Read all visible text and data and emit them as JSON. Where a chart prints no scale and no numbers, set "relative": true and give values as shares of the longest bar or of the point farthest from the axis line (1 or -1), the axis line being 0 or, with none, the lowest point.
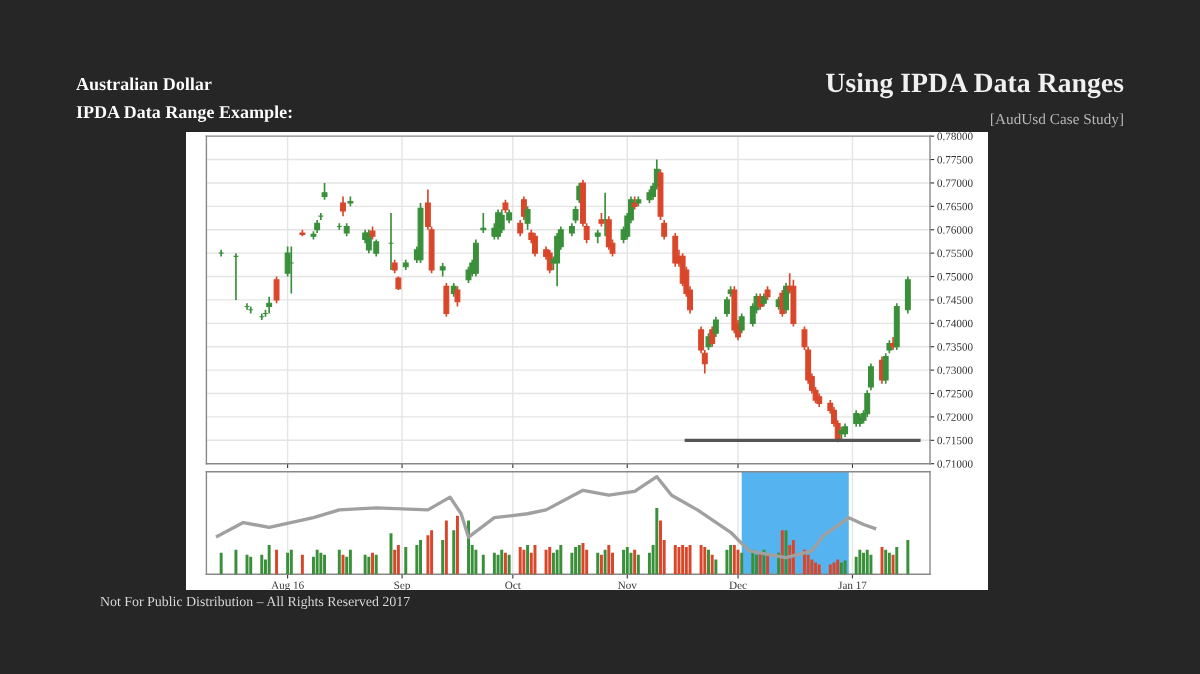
{
  "chart_data": [
    {
      "type": "candlestick",
      "title": "Australian Dollar",
      "subtitle": "IPDA Data Range Example:",
      "annotations": [
        "Using IPDA Data Ranges",
        "[AudUsd Case Study]",
        "Not For Public Distribution – All Rights Reserved 2017"
      ],
      "x": [
        "2016-07-14",
        "2016-07-18",
        "2016-07-21",
        "2016-07-22",
        "2016-07-25",
        "2016-07-26",
        "2016-07-27",
        "2016-07-29",
        "2016-08-01",
        "2016-08-02",
        "2016-08-05",
        "2016-08-08",
        "2016-08-09",
        "2016-08-10",
        "2016-08-11",
        "2016-08-15",
        "2016-08-16",
        "2016-08-17",
        "2016-08-18",
        "2016-08-22",
        "2016-08-23",
        "2016-08-24",
        "2016-08-25",
        "2016-08-29",
        "2016-08-30",
        "2016-08-31",
        "2016-09-02",
        "2016-09-05",
        "2016-09-06",
        "2016-09-08",
        "2016-09-09",
        "2016-09-12",
        "2016-09-13",
        "2016-09-15",
        "2016-09-16",
        "2016-09-19",
        "2016-09-20",
        "2016-09-21",
        "2016-09-23",
        "2016-09-26",
        "2016-09-27",
        "2016-09-28",
        "2016-09-29",
        "2016-09-30",
        "2016-10-03",
        "2016-10-04",
        "2016-10-05",
        "2016-10-06",
        "2016-10-07",
        "2016-10-10",
        "2016-10-11",
        "2016-10-12",
        "2016-10-13",
        "2016-10-14",
        "2016-10-17",
        "2016-10-18",
        "2016-10-19",
        "2016-10-20",
        "2016-10-21",
        "2016-10-24",
        "2016-10-25",
        "2016-10-26",
        "2016-10-27",
        "2016-10-28",
        "2016-10-31",
        "2016-11-01",
        "2016-11-02",
        "2016-11-03",
        "2016-11-04",
        "2016-11-07",
        "2016-11-08",
        "2016-11-09",
        "2016-11-10",
        "2016-11-11",
        "2016-11-14",
        "2016-11-15",
        "2016-11-16",
        "2016-11-17",
        "2016-11-18",
        "2016-11-21",
        "2016-11-22",
        "2016-11-23",
        "2016-11-24",
        "2016-11-25",
        "2016-11-28",
        "2016-11-29",
        "2016-11-30",
        "2016-12-01",
        "2016-12-02",
        "2016-12-05",
        "2016-12-06",
        "2016-12-07",
        "2016-12-08",
        "2016-12-09",
        "2016-12-12",
        "2016-12-13",
        "2016-12-14",
        "2016-12-15",
        "2016-12-16",
        "2016-12-19",
        "2016-12-20",
        "2016-12-21",
        "2016-12-22",
        "2016-12-23",
        "2016-12-26",
        "2016-12-27",
        "2016-12-28",
        "2016-12-29",
        "2016-12-30",
        "2017-01-02",
        "2017-01-03",
        "2017-01-04",
        "2017-01-05",
        "2017-01-06",
        "2017-01-09",
        "2017-01-10",
        "2017-01-11",
        "2017-01-12",
        "2017-01-13",
        "2017-01-16"
      ],
      "ohlc": [
        [
          0.755,
          0.7557,
          0.7543,
          0.755
        ],
        [
          0.7543,
          0.755,
          0.745,
          0.7543
        ],
        [
          0.7436,
          0.7443,
          0.7429,
          0.7436
        ],
        [
          0.7429,
          0.7436,
          0.7421,
          0.7429
        ],
        [
          0.7414,
          0.7421,
          0.7407,
          0.7414
        ],
        [
          0.7421,
          0.7429,
          0.7414,
          0.7421
        ],
        [
          0.7436,
          0.7457,
          0.7421,
          0.7443
        ],
        [
          0.7493,
          0.75,
          0.7443,
          0.745
        ],
        [
          0.7507,
          0.7564,
          0.75,
          0.755
        ],
        [
          0.7529,
          0.7564,
          0.7464,
          0.7529
        ],
        [
          0.7593,
          0.76,
          0.7586,
          0.759
        ],
        [
          0.7586,
          0.7597,
          0.7579,
          0.759
        ],
        [
          0.76,
          0.7621,
          0.7593,
          0.7614
        ],
        [
          0.7629,
          0.7636,
          0.7621,
          0.7629
        ],
        [
          0.7671,
          0.77,
          0.7664,
          0.7679
        ],
        [
          0.7607,
          0.7614,
          0.76,
          0.7607
        ],
        [
          0.7657,
          0.7671,
          0.7629,
          0.764
        ],
        [
          0.7593,
          0.7614,
          0.7586,
          0.7607
        ],
        [
          0.7657,
          0.7671,
          0.765,
          0.766
        ],
        [
          0.7579,
          0.76,
          0.7571,
          0.7593
        ],
        [
          0.7557,
          0.76,
          0.755,
          0.7593
        ],
        [
          0.7597,
          0.7607,
          0.7579,
          0.7586
        ],
        [
          0.755,
          0.7579,
          0.7543,
          0.7574
        ],
        [
          0.7571,
          0.7636,
          0.7514,
          0.7571
        ],
        [
          0.7529,
          0.7536,
          0.7507,
          0.7514
        ],
        [
          0.7497,
          0.75,
          0.7471,
          0.7474
        ],
        [
          0.7521,
          0.7536,
          0.7514,
          0.7529
        ],
        [
          0.7536,
          0.7564,
          0.7529,
          0.7557
        ],
        [
          0.7536,
          0.7657,
          0.7529,
          0.7646
        ],
        [
          0.7657,
          0.7686,
          0.76,
          0.7607
        ],
        [
          0.76,
          0.7607,
          0.7507,
          0.7514
        ],
        [
          0.7514,
          0.7529,
          0.75,
          0.7521
        ],
        [
          0.7479,
          0.7486,
          0.7414,
          0.7421
        ],
        [
          0.7464,
          0.7486,
          0.7457,
          0.7479
        ],
        [
          0.7471,
          0.7479,
          0.7436,
          0.7446
        ],
        [
          0.7493,
          0.7521,
          0.7486,
          0.7514
        ],
        [
          0.7507,
          0.7536,
          0.75,
          0.7529
        ],
        [
          0.7507,
          0.7579,
          0.75,
          0.7571
        ],
        [
          0.76,
          0.7636,
          0.7593,
          0.7603
        ],
        [
          0.7586,
          0.7614,
          0.7579,
          0.7603
        ],
        [
          0.7586,
          0.7643,
          0.7579,
          0.7636
        ],
        [
          0.76,
          0.7643,
          0.7593,
          0.7631
        ],
        [
          0.7657,
          0.7664,
          0.7636,
          0.7643
        ],
        [
          0.7621,
          0.7643,
          0.7614,
          0.7636
        ],
        [
          0.7614,
          0.7621,
          0.7586,
          0.7593
        ],
        [
          0.7664,
          0.7671,
          0.7621,
          0.7629
        ],
        [
          0.7614,
          0.765,
          0.76,
          0.7643
        ],
        [
          0.7593,
          0.76,
          0.7571,
          0.7579
        ],
        [
          0.7586,
          0.7593,
          0.7543,
          0.755
        ],
        [
          0.7557,
          0.7564,
          0.7536,
          0.7543
        ],
        [
          0.755,
          0.7557,
          0.7507,
          0.7514
        ],
        [
          0.7529,
          0.7543,
          0.7514,
          0.7536
        ],
        [
          0.7529,
          0.7593,
          0.7479,
          0.7586
        ],
        [
          0.7564,
          0.7607,
          0.7557,
          0.76
        ],
        [
          0.7593,
          0.7614,
          0.7586,
          0.7607
        ],
        [
          0.7621,
          0.765,
          0.7614,
          0.7643
        ],
        [
          0.7664,
          0.77,
          0.7657,
          0.7693
        ],
        [
          0.77,
          0.7707,
          0.7607,
          0.7614
        ],
        [
          0.7607,
          0.7614,
          0.7571,
          0.7579
        ],
        [
          0.7586,
          0.76,
          0.7571,
          0.7593
        ],
        [
          0.7621,
          0.7636,
          0.7607,
          0.7614
        ],
        [
          0.7621,
          0.7679,
          0.7586,
          0.7621
        ],
        [
          0.7621,
          0.7629,
          0.7557,
          0.7564
        ],
        [
          0.7571,
          0.7579,
          0.7543,
          0.755
        ],
        [
          0.7579,
          0.7607,
          0.7571,
          0.76
        ],
        [
          0.7586,
          0.7636,
          0.7579,
          0.7629
        ],
        [
          0.7621,
          0.7671,
          0.7614,
          0.7664
        ],
        [
          0.7657,
          0.7671,
          0.7643,
          0.765
        ],
        [
          0.7657,
          0.7671,
          0.765,
          0.7664
        ],
        [
          0.7664,
          0.7686,
          0.7657,
          0.7679
        ],
        [
          0.7671,
          0.77,
          0.7664,
          0.7693
        ],
        [
          0.7693,
          0.775,
          0.7686,
          0.7729
        ],
        [
          0.7721,
          0.7729,
          0.7621,
          0.7629
        ],
        [
          0.7614,
          0.7621,
          0.7579,
          0.7586
        ],
        [
          0.7586,
          0.7593,
          0.7521,
          0.7529
        ],
        [
          0.7543,
          0.7557,
          0.7521,
          0.7529
        ],
        [
          0.7543,
          0.755,
          0.7479,
          0.7486
        ],
        [
          0.7514,
          0.7521,
          0.7457,
          0.7464
        ],
        [
          0.7471,
          0.7479,
          0.7421,
          0.7429
        ],
        [
          0.7386,
          0.7393,
          0.7336,
          0.7343
        ],
        [
          0.7336,
          0.7343,
          0.7293,
          0.7314
        ],
        [
          0.735,
          0.7379,
          0.7343,
          0.7371
        ],
        [
          0.7386,
          0.7393,
          0.735,
          0.7357
        ],
        [
          0.7379,
          0.7414,
          0.7371,
          0.7407
        ],
        [
          0.7421,
          0.7457,
          0.7414,
          0.745
        ],
        [
          0.7464,
          0.7479,
          0.7457,
          0.7471
        ],
        [
          0.7471,
          0.7479,
          0.7379,
          0.7386
        ],
        [
          0.74,
          0.7407,
          0.7364,
          0.7371
        ],
        [
          0.7386,
          0.7421,
          0.7379,
          0.7414
        ],
        [
          0.74,
          0.7443,
          0.7393,
          0.7436
        ],
        [
          0.7429,
          0.7464,
          0.7421,
          0.7457
        ],
        [
          0.7457,
          0.7464,
          0.7429,
          0.7436
        ],
        [
          0.7443,
          0.7464,
          0.7436,
          0.7457
        ],
        [
          0.7471,
          0.7479,
          0.745,
          0.7457
        ],
        [
          0.7436,
          0.7457,
          0.7429,
          0.745
        ],
        [
          0.7464,
          0.7471,
          0.7414,
          0.7421
        ],
        [
          0.7429,
          0.7486,
          0.7421,
          0.7479
        ],
        [
          0.7479,
          0.7507,
          0.7464,
          0.7471
        ],
        [
          0.7479,
          0.7493,
          0.7393,
          0.74
        ],
        [
          0.7386,
          0.7393,
          0.7343,
          0.735
        ],
        [
          0.7343,
          0.735,
          0.7271,
          0.7279
        ],
        [
          0.7286,
          0.7293,
          0.725,
          0.7257
        ],
        [
          0.7257,
          0.7264,
          0.7229,
          0.7236
        ],
        [
          0.7243,
          0.725,
          0.7221,
          0.7229
        ],
        [
          0.7229,
          0.7236,
          0.7207,
          0.7214
        ],
        [
          0.7214,
          0.7221,
          0.7179,
          0.7186
        ],
        [
          0.7186,
          0.7193,
          0.7146,
          0.715
        ],
        [
          0.7164,
          0.7179,
          0.715,
          0.7171
        ],
        [
          0.7164,
          0.7186,
          0.7157,
          0.7179
        ],
        [
          0.7186,
          0.7214,
          0.7179,
          0.7207
        ],
        [
          0.7186,
          0.7207,
          0.7179,
          0.72
        ],
        [
          0.7193,
          0.7214,
          0.7186,
          0.7207
        ],
        [
          0.7207,
          0.7257,
          0.72,
          0.725
        ],
        [
          0.7264,
          0.7314,
          0.7257,
          0.7307
        ],
        [
          0.7321,
          0.7329,
          0.7271,
          0.7279
        ],
        [
          0.7279,
          0.7336,
          0.7271,
          0.7329
        ],
        [
          0.7343,
          0.7364,
          0.7336,
          0.7357
        ],
        [
          0.7357,
          0.7371,
          0.7343,
          0.735
        ],
        [
          0.735,
          0.7443,
          0.7343,
          0.7436
        ],
        [
          0.7429,
          0.75,
          0.7421,
          0.7493
        ]
      ],
      "colors": [
        "#3a8f3a",
        "#3a8f3a",
        "#3a8f3a",
        "#3a8f3a",
        "#3a8f3a",
        "#3a8f3a",
        "#3a8f3a",
        "#d9472b",
        "#3a8f3a",
        "#3a8f3a",
        "#d9472b",
        "#3a8f3a",
        "#3a8f3a",
        "#3a8f3a",
        "#3a8f3a",
        "#3a8f3a",
        "#d9472b",
        "#3a8f3a",
        "#3a8f3a",
        "#3a8f3a",
        "#3a8f3a",
        "#d9472b",
        "#3a8f3a",
        "#3a8f3a",
        "#d9472b",
        "#d9472b",
        "#3a8f3a",
        "#3a8f3a",
        "#3a8f3a",
        "#d9472b",
        "#d9472b",
        "#3a8f3a",
        "#d9472b",
        "#3a8f3a",
        "#d9472b",
        "#3a8f3a",
        "#3a8f3a",
        "#3a8f3a",
        "#3a8f3a",
        "#3a8f3a",
        "#3a8f3a",
        "#3a8f3a",
        "#d9472b",
        "#3a8f3a",
        "#d9472b",
        "#d9472b",
        "#3a8f3a",
        "#d9472b",
        "#d9472b",
        "#d9472b",
        "#d9472b",
        "#3a8f3a",
        "#3a8f3a",
        "#3a8f3a",
        "#3a8f3a",
        "#3a8f3a",
        "#3a8f3a",
        "#d9472b",
        "#d9472b",
        "#3a8f3a",
        "#d9472b",
        "#3a8f3a",
        "#d9472b",
        "#d9472b",
        "#3a8f3a",
        "#3a8f3a",
        "#3a8f3a",
        "#d9472b",
        "#3a8f3a",
        "#3a8f3a",
        "#3a8f3a",
        "#3a8f3a",
        "#d9472b",
        "#d9472b",
        "#d9472b",
        "#d9472b",
        "#d9472b",
        "#d9472b",
        "#d9472b",
        "#d9472b",
        "#d9472b",
        "#3a8f3a",
        "#d9472b",
        "#3a8f3a",
        "#3a8f3a",
        "#3a8f3a",
        "#d9472b",
        "#d9472b",
        "#3a8f3a",
        "#3a8f3a",
        "#3a8f3a",
        "#d9472b",
        "#3a8f3a",
        "#d9472b",
        "#3a8f3a",
        "#d9472b",
        "#3a8f3a",
        "#d9472b",
        "#d9472b",
        "#d9472b",
        "#d9472b",
        "#d9472b",
        "#d9472b",
        "#d9472b",
        "#d9472b",
        "#d9472b",
        "#d9472b",
        "#3a8f3a",
        "#3a8f3a",
        "#3a8f3a",
        "#3a8f3a",
        "#3a8f3a",
        "#3a8f3a",
        "#3a8f3a",
        "#d9472b",
        "#3a8f3a",
        "#3a8f3a",
        "#d9472b",
        "#3a8f3a",
        "#3a8f3a"
      ],
      "series": [
        {
          "type": "line",
          "x": [
            "2016-11-17",
            "2017-01-19"
          ],
          "values": [
            0.715,
            0.715
          ],
          "color": "#555555"
        }
      ],
      "xlim": [
        "2016-07-10",
        "2017-01-22"
      ],
      "xticks": [
        {
          "value": "2016-08-01",
          "label": null
        },
        {
          "value": "2016-09-01",
          "label": null
        },
        {
          "value": "2016-10-01",
          "label": null
        },
        {
          "value": "2016-11-01",
          "label": null
        },
        {
          "value": "2016-12-01",
          "label": null
        },
        {
          "value": "2017-01-01",
          "label": null
        }
      ],
      "ylim": [
        0.71,
        0.78
      ],
      "yticks": [
        {
          "value": 0.71,
          "label": "0.71000"
        },
        {
          "value": 0.715,
          "label": "0.71500"
        },
        {
          "value": 0.72,
          "label": "0.72000"
        },
        {
          "value": 0.725,
          "label": "0.72500"
        },
        {
          "value": 0.73,
          "label": "0.73000"
        },
        {
          "value": 0.735,
          "label": "0.73500"
        },
        {
          "value": 0.74,
          "label": "0.74000"
        },
        {
          "value": 0.745,
          "label": "0.74500"
        },
        {
          "value": 0.75,
          "label": "0.75000"
        },
        {
          "value": 0.755,
          "label": "0.75500"
        },
        {
          "value": 0.76,
          "label": "0.76000"
        },
        {
          "value": 0.765,
          "label": "0.76500"
        },
        {
          "value": 0.77,
          "label": "0.77000"
        },
        {
          "value": 0.775,
          "label": "0.77500"
        },
        {
          "value": 0.78,
          "label": "0.78000"
        }
      ],
      "tick_labels": "y",
      "grid": true
    },
    {
      "type": "bar",
      "relative": true,
      "x": [
        "2016-07-14",
        "2016-07-18",
        "2016-07-21",
        "2016-07-22",
        "2016-07-25",
        "2016-07-26",
        "2016-07-27",
        "2016-07-29",
        "2016-08-01",
        "2016-08-02",
        "2016-08-05",
        "2016-08-08",
        "2016-08-09",
        "2016-08-10",
        "2016-08-11",
        "2016-08-15",
        "2016-08-16",
        "2016-08-17",
        "2016-08-18",
        "2016-08-22",
        "2016-08-23",
        "2016-08-24",
        "2016-08-25",
        "2016-08-29",
        "2016-08-30",
        "2016-08-31",
        "2016-09-02",
        "2016-09-05",
        "2016-09-06",
        "2016-09-08",
        "2016-09-09",
        "2016-09-12",
        "2016-09-13",
        "2016-09-15",
        "2016-09-16",
        "2016-09-19",
        "2016-09-20",
        "2016-09-21",
        "2016-09-23",
        "2016-09-26",
        "2016-09-27",
        "2016-09-28",
        "2016-09-29",
        "2016-09-30",
        "2016-10-03",
        "2016-10-04",
        "2016-10-05",
        "2016-10-06",
        "2016-10-07",
        "2016-10-10",
        "2016-10-11",
        "2016-10-12",
        "2016-10-13",
        "2016-10-14",
        "2016-10-17",
        "2016-10-18",
        "2016-10-19",
        "2016-10-20",
        "2016-10-21",
        "2016-10-24",
        "2016-10-25",
        "2016-10-26",
        "2016-10-27",
        "2016-10-28",
        "2016-10-31",
        "2016-11-01",
        "2016-11-02",
        "2016-11-03",
        "2016-11-04",
        "2016-11-07",
        "2016-11-08",
        "2016-11-09",
        "2016-11-10",
        "2016-11-11",
        "2016-11-14",
        "2016-11-15",
        "2016-11-16",
        "2016-11-17",
        "2016-11-18",
        "2016-11-21",
        "2016-11-22",
        "2016-11-23",
        "2016-11-24",
        "2016-11-25",
        "2016-11-28",
        "2016-11-29",
        "2016-11-30",
        "2016-12-01",
        "2016-12-02",
        "2016-12-05",
        "2016-12-06",
        "2016-12-07",
        "2016-12-08",
        "2016-12-09",
        "2016-12-12",
        "2016-12-13",
        "2016-12-14",
        "2016-12-15",
        "2016-12-16",
        "2016-12-19",
        "2016-12-20",
        "2016-12-21",
        "2016-12-22",
        "2016-12-23",
        "2016-12-26",
        "2016-12-27",
        "2016-12-28",
        "2016-12-29",
        "2016-12-30",
        "2017-01-02",
        "2017-01-03",
        "2017-01-04",
        "2017-01-05",
        "2017-01-06",
        "2017-01-09",
        "2017-01-10",
        "2017-01-11",
        "2017-01-12",
        "2017-01-13",
        "2017-01-16"
      ],
      "values": [
        0.22,
        0.25,
        0.2,
        0.18,
        0.2,
        0.15,
        0.3,
        0.25,
        0.22,
        0.25,
        0.2,
        0.18,
        0.25,
        0.22,
        0.2,
        0.25,
        0.2,
        0.18,
        0.25,
        0.2,
        0.18,
        0.22,
        0.2,
        0.42,
        0.25,
        0.3,
        0.28,
        0.3,
        0.35,
        0.4,
        0.45,
        0.35,
        0.55,
        0.45,
        0.6,
        0.55,
        0.3,
        0.25,
        0.2,
        0.22,
        0.2,
        0.25,
        0.22,
        0.2,
        0.28,
        0.25,
        0.3,
        0.22,
        0.3,
        0.25,
        0.28,
        0.22,
        0.25,
        0.3,
        0.22,
        0.28,
        0.3,
        0.32,
        0.25,
        0.22,
        0.2,
        0.25,
        0.3,
        0.22,
        0.25,
        0.28,
        0.22,
        0.25,
        0.2,
        0.22,
        0.3,
        0.68,
        0.55,
        0.35,
        0.3,
        0.28,
        0.3,
        0.28,
        0.3,
        0.3,
        0.28,
        0.25,
        0.2,
        0.15,
        0.25,
        0.3,
        0.3,
        0.25,
        0.22,
        0.25,
        0.2,
        0.22,
        0.25,
        0.2,
        0.22,
        0.45,
        0.45,
        0.3,
        0.35,
        0.25,
        0.2,
        0.15,
        0.12,
        0.1,
        0.1,
        0.12,
        0.15,
        0.12,
        0.14,
        0.18,
        0.25,
        0.22,
        0.25,
        0.2,
        0.28,
        0.25,
        0.22,
        0.2,
        0.28,
        0.35
      ],
      "colors": [
        "#3a8f3a",
        "#3a8f3a",
        "#3a8f3a",
        "#3a8f3a",
        "#3a8f3a",
        "#3a8f3a",
        "#3a8f3a",
        "#d9472b",
        "#3a8f3a",
        "#3a8f3a",
        "#d9472b",
        "#3a8f3a",
        "#3a8f3a",
        "#3a8f3a",
        "#3a8f3a",
        "#3a8f3a",
        "#d9472b",
        "#3a8f3a",
        "#3a8f3a",
        "#3a8f3a",
        "#3a8f3a",
        "#d9472b",
        "#3a8f3a",
        "#3a8f3a",
        "#d9472b",
        "#d9472b",
        "#3a8f3a",
        "#3a8f3a",
        "#3a8f3a",
        "#d9472b",
        "#d9472b",
        "#3a8f3a",
        "#d9472b",
        "#3a8f3a",
        "#d9472b",
        "#3a8f3a",
        "#3a8f3a",
        "#3a8f3a",
        "#3a8f3a",
        "#3a8f3a",
        "#3a8f3a",
        "#3a8f3a",
        "#d9472b",
        "#3a8f3a",
        "#d9472b",
        "#d9472b",
        "#3a8f3a",
        "#d9472b",
        "#d9472b",
        "#d9472b",
        "#d9472b",
        "#3a8f3a",
        "#3a8f3a",
        "#3a8f3a",
        "#3a8f3a",
        "#3a8f3a",
        "#3a8f3a",
        "#d9472b",
        "#d9472b",
        "#3a8f3a",
        "#d9472b",
        "#3a8f3a",
        "#d9472b",
        "#d9472b",
        "#3a8f3a",
        "#3a8f3a",
        "#3a8f3a",
        "#d9472b",
        "#3a8f3a",
        "#3a8f3a",
        "#3a8f3a",
        "#3a8f3a",
        "#d9472b",
        "#d9472b",
        "#d9472b",
        "#d9472b",
        "#d9472b",
        "#d9472b",
        "#d9472b",
        "#d9472b",
        "#d9472b",
        "#3a8f3a",
        "#d9472b",
        "#3a8f3a",
        "#3a8f3a",
        "#3a8f3a",
        "#d9472b",
        "#d9472b",
        "#3a8f3a",
        "#3a8f3a",
        "#3a8f3a",
        "#d9472b",
        "#3a8f3a",
        "#d9472b",
        "#3a8f3a",
        "#d9472b",
        "#3a8f3a",
        "#d9472b",
        "#d9472b",
        "#d9472b",
        "#d9472b",
        "#d9472b",
        "#d9472b",
        "#d9472b",
        "#d9472b",
        "#d9472b",
        "#d9472b",
        "#3a8f3a",
        "#3a8f3a",
        "#3a8f3a",
        "#3a8f3a",
        "#3a8f3a",
        "#3a8f3a",
        "#3a8f3a",
        "#d9472b",
        "#3a8f3a",
        "#3a8f3a",
        "#d9472b",
        "#3a8f3a",
        "#3a8f3a"
      ],
      "series": [
        {
          "type": "line",
          "color": "#a0a0a0",
          "x": [
            "2016-07-13",
            "2016-07-20",
            "2016-07-27",
            "2016-08-08",
            "2016-08-15",
            "2016-08-25",
            "2016-09-08",
            "2016-09-14",
            "2016-09-17",
            "2016-09-19",
            "2016-09-26",
            "2016-10-05",
            "2016-10-10",
            "2016-10-20",
            "2016-10-27",
            "2016-11-03",
            "2016-11-09",
            "2016-11-13",
            "2016-11-20",
            "2016-11-29",
            "2016-12-04",
            "2016-12-14",
            "2016-12-21",
            "2016-12-24",
            "2016-12-31",
            "2017-01-04",
            "2017-01-07"
          ],
          "values": [
            0.39,
            0.53,
            0.48,
            0.58,
            0.66,
            0.68,
            0.66,
            0.79,
            0.62,
            0.38,
            0.58,
            0.62,
            0.66,
            0.86,
            0.81,
            0.85,
            1,
            0.81,
            0.66,
            0.43,
            0.24,
            0.17,
            0.24,
            0.39,
            0.58,
            0.51,
            0.47
          ]
        }
      ],
      "bands": [
        {
          "axis": "x",
          "from": "2016-12-02",
          "to": "2016-12-31",
          "color": "#55b4f0"
        }
      ],
      "xlim": [
        "2016-07-10",
        "2017-01-22"
      ],
      "xticks": [
        {
          "value": "2016-08-01",
          "label": "Aug 16"
        },
        {
          "value": "2016-09-01",
          "label": "Sep"
        },
        {
          "value": "2016-10-01",
          "label": "Oct"
        },
        {
          "value": "2016-11-01",
          "label": "Nov"
        },
        {
          "value": "2016-12-01",
          "label": "Dec"
        },
        {
          "value": "2017-01-01",
          "label": "Jan 17"
        }
      ],
      "tick_labels": "x",
      "grid": true
    }
  ]
}
